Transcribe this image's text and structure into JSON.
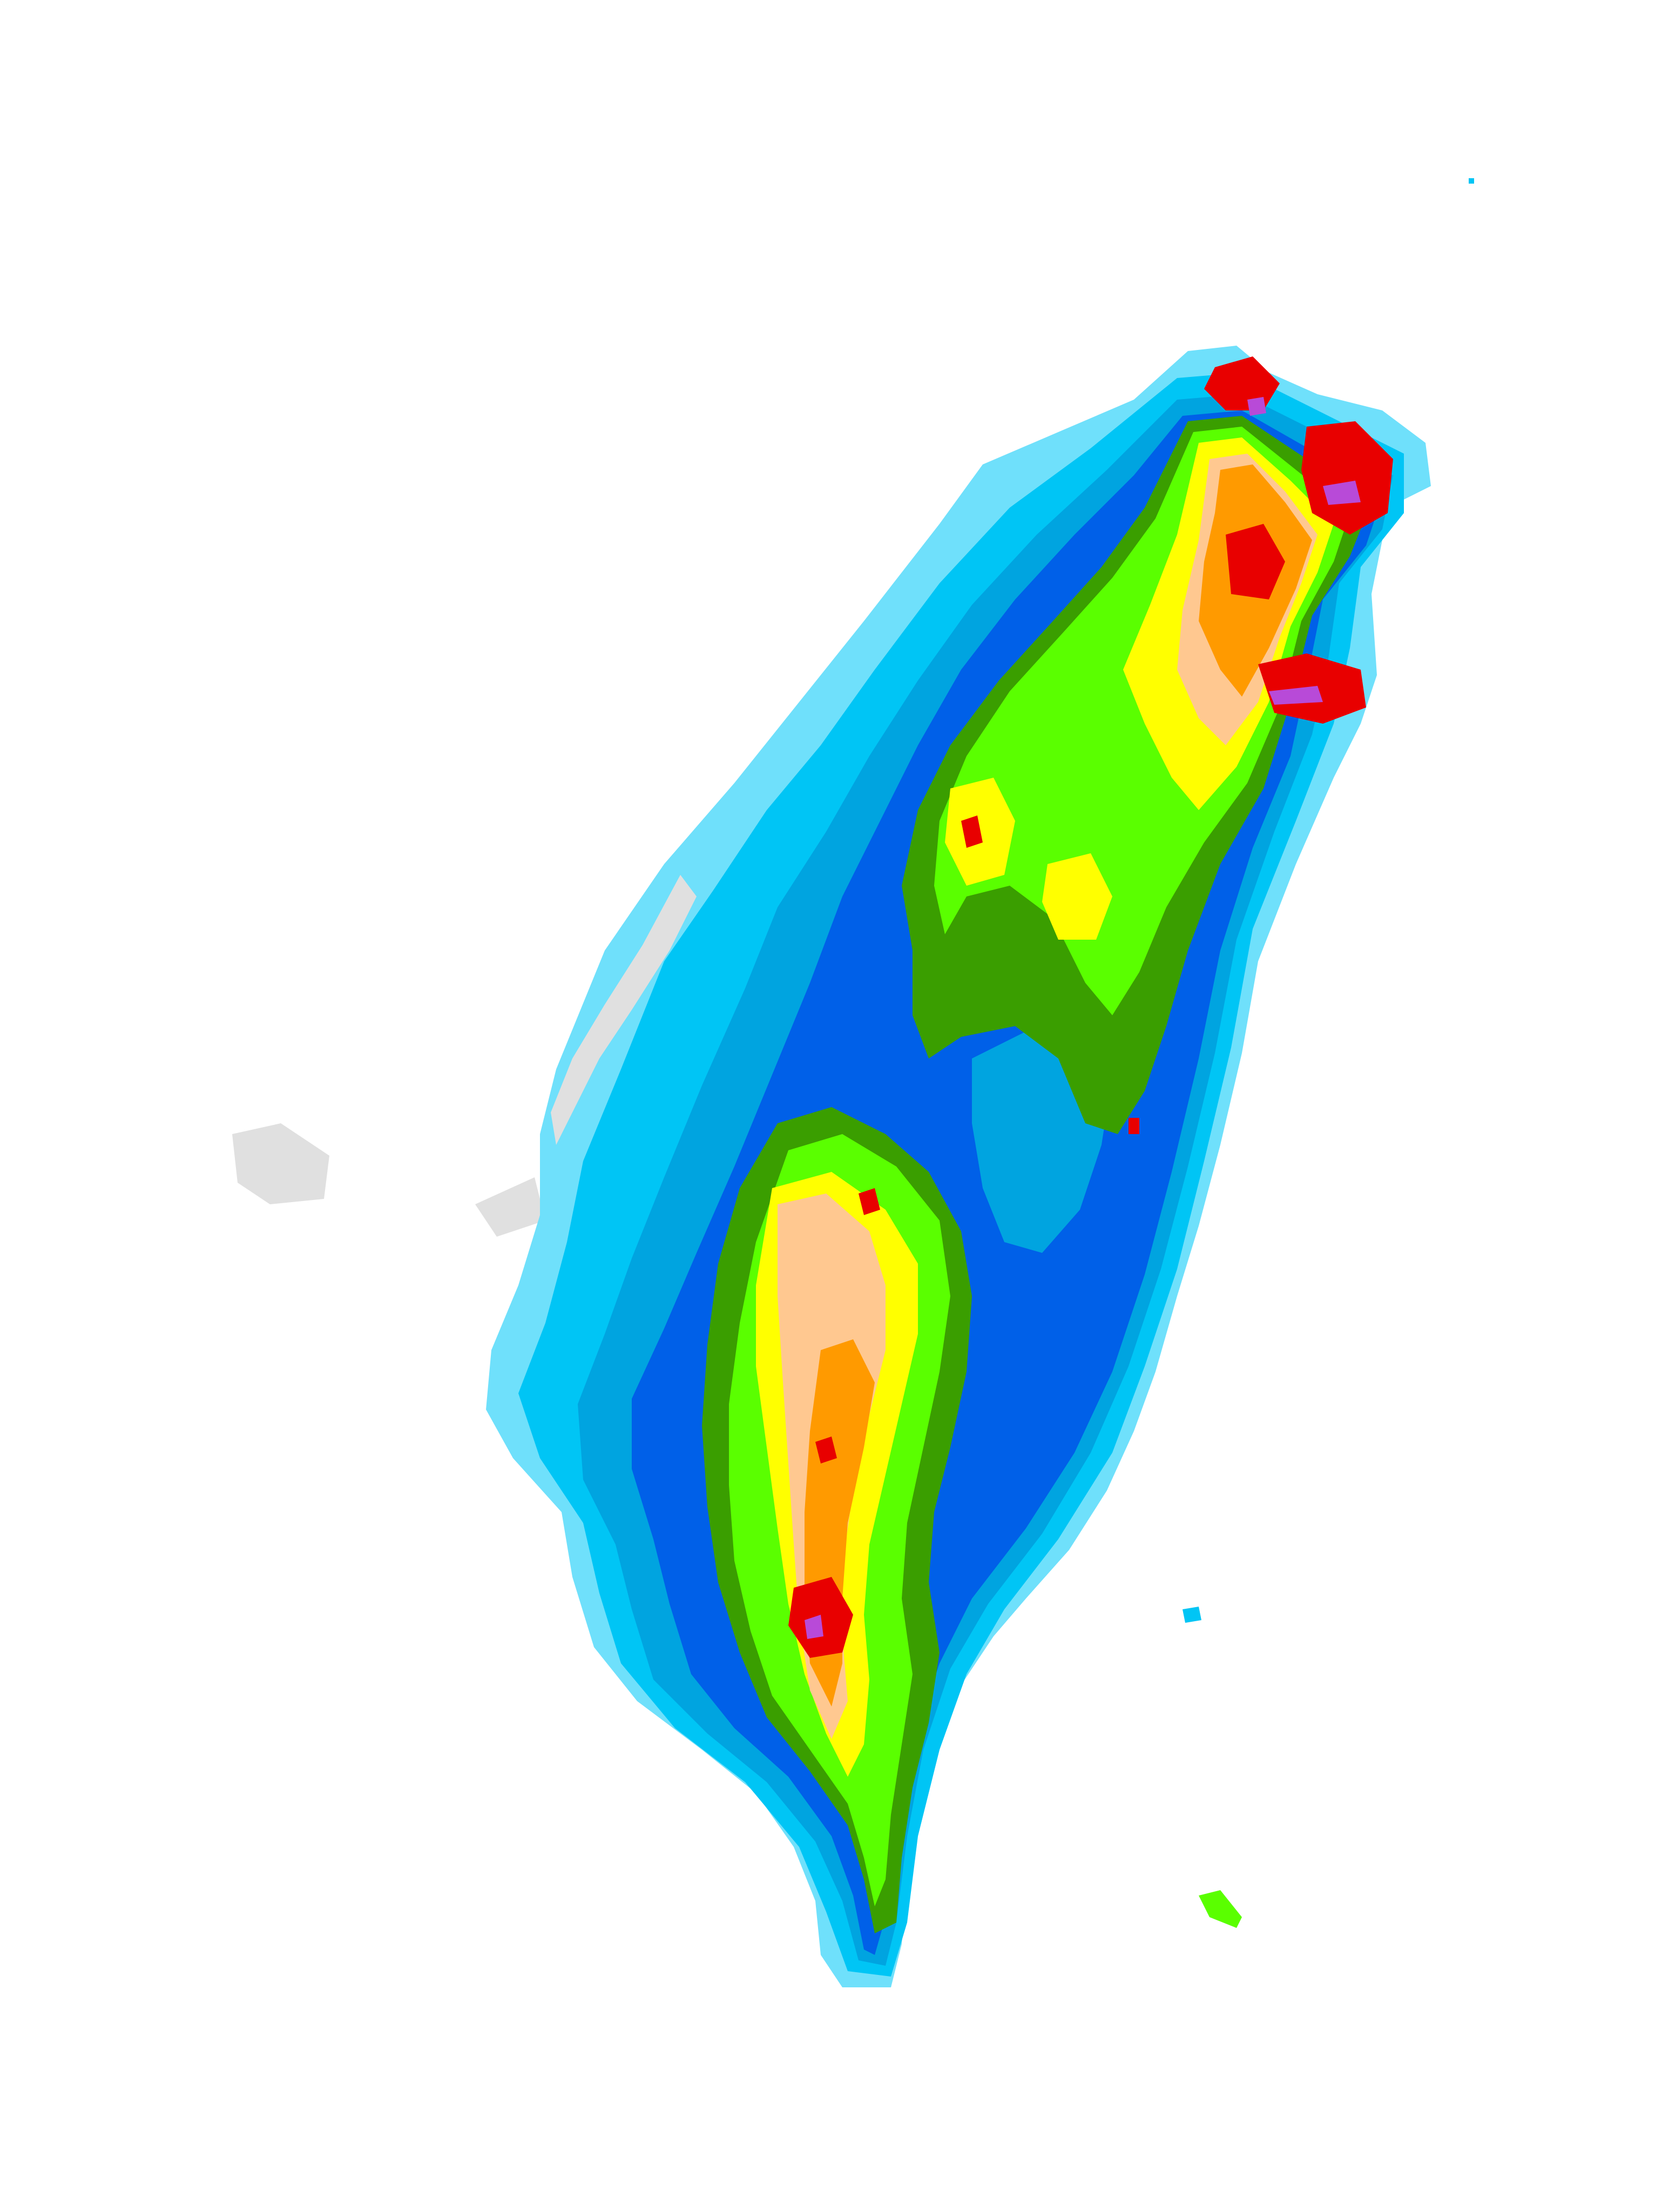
{
  "map": {
    "type": "contour-map",
    "region_depicted": "island",
    "legend_shown": false,
    "labels_shown": false,
    "color_scale": [
      {
        "level": 0,
        "color": "#e0e0e0"
      },
      {
        "level": 1,
        "color": "#6fe0fb"
      },
      {
        "level": 2,
        "color": "#00c5f5"
      },
      {
        "level": 3,
        "color": "#00a4e0"
      },
      {
        "level": 4,
        "color": "#0060e8"
      },
      {
        "level": 5,
        "color": "#3a9e00"
      },
      {
        "level": 6,
        "color": "#5aff00"
      },
      {
        "level": 7,
        "color": "#ffff00"
      },
      {
        "level": 8,
        "color": "#ffc890"
      },
      {
        "level": 9,
        "color": "#ff9a00"
      },
      {
        "level": 10,
        "color": "#e80000"
      },
      {
        "level": 11,
        "color": "#a00070"
      },
      {
        "level": 12,
        "color": "#b84ad8"
      }
    ]
  }
}
